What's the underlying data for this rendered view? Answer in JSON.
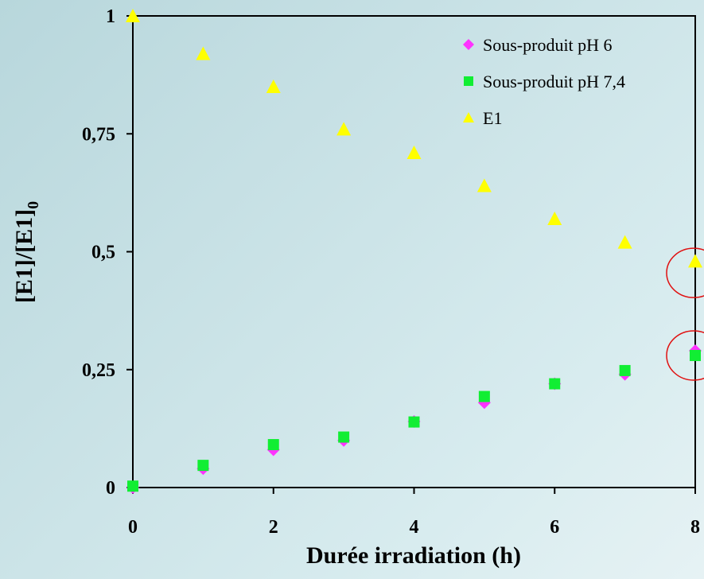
{
  "chart_data": {
    "type": "scatter",
    "title": "",
    "xlabel": "Durée irradiation (h)",
    "ylabel": "[E1]/[E1]",
    "ylabel_subscript": "0",
    "xlim": [
      0,
      8
    ],
    "ylim": [
      0,
      1
    ],
    "x_ticks": [
      {
        "value": 0,
        "label": "0"
      },
      {
        "value": 2,
        "label": "2"
      },
      {
        "value": 4,
        "label": "4"
      },
      {
        "value": 6,
        "label": "6"
      },
      {
        "value": 8,
        "label": "8"
      }
    ],
    "y_ticks": [
      {
        "value": 0,
        "label": "0"
      },
      {
        "value": 0.25,
        "label": "0,25"
      },
      {
        "value": 0.5,
        "label": "0,5"
      },
      {
        "value": 0.75,
        "label": "0,75"
      },
      {
        "value": 1,
        "label": "1"
      }
    ],
    "grid": false,
    "legend_position": "top-right",
    "series": [
      {
        "name": "Sous-produit pH 6",
        "marker": "diamond",
        "color": "#ff33ff",
        "points": [
          [
            0,
            0
          ],
          [
            1,
            0.04
          ],
          [
            2,
            0.08
          ],
          [
            3,
            0.1
          ],
          [
            4,
            0.14
          ],
          [
            5,
            0.18
          ],
          [
            6,
            0.22
          ],
          [
            7,
            0.24
          ],
          [
            8,
            0.29
          ]
        ]
      },
      {
        "name": "Sous-produit pH 7,4",
        "marker": "square",
        "color": "#11ee33",
        "points": [
          [
            0,
            0.003
          ],
          [
            1,
            0.047
          ],
          [
            2,
            0.091
          ],
          [
            3,
            0.107
          ],
          [
            4,
            0.139
          ],
          [
            5,
            0.193
          ],
          [
            6,
            0.22
          ],
          [
            7,
            0.248
          ],
          [
            8,
            0.28
          ]
        ]
      },
      {
        "name": "E1",
        "marker": "triangle",
        "color": "#ffff00",
        "points": [
          [
            0,
            1
          ],
          [
            1,
            0.92
          ],
          [
            2,
            0.85
          ],
          [
            3,
            0.76
          ],
          [
            4,
            0.71
          ],
          [
            5,
            0.64
          ],
          [
            6,
            0.57
          ],
          [
            7,
            0.52
          ],
          [
            8,
            0.48
          ]
        ]
      }
    ],
    "annotations": [
      {
        "type": "circle",
        "x": 8,
        "y": 0.455,
        "color": "#e01010"
      },
      {
        "type": "circle",
        "x": 8,
        "y": 0.28,
        "color": "#e01010"
      }
    ]
  }
}
